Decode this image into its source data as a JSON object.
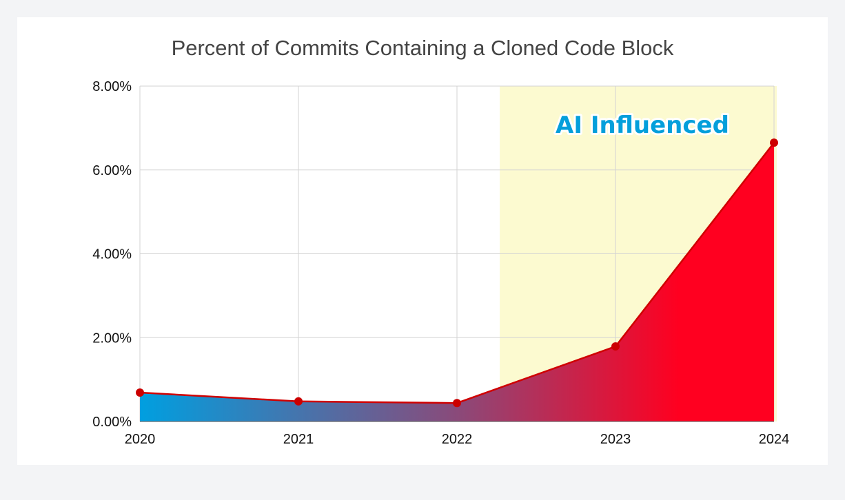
{
  "chart_data": {
    "type": "area",
    "title": "Percent of Commits Containing a Cloned Code Block",
    "x": [
      2020,
      2021,
      2022,
      2023,
      2024
    ],
    "x_tick_labels": [
      "2020",
      "2021",
      "2022",
      "2023",
      "2024"
    ],
    "values": [
      0.69,
      0.48,
      0.44,
      1.79,
      6.65
    ],
    "unit": "%",
    "ylim": [
      0,
      8
    ],
    "y_ticks": [
      0,
      2,
      4,
      6,
      8
    ],
    "y_tick_labels": [
      "0.00%",
      "2.00%",
      "4.00%",
      "6.00%",
      "8.00%"
    ],
    "xlim": [
      2020,
      2024
    ],
    "grid": true,
    "highlight_region": {
      "x_start": 2022.27,
      "x_end": 2024,
      "label": "AI Influenced",
      "color": "#fcfad0"
    },
    "colors": {
      "line": "#d00000",
      "marker": "#cc0000",
      "fill_start": "#009fe0",
      "fill_end": "#ff0020",
      "annotation": "#049fdb"
    }
  }
}
